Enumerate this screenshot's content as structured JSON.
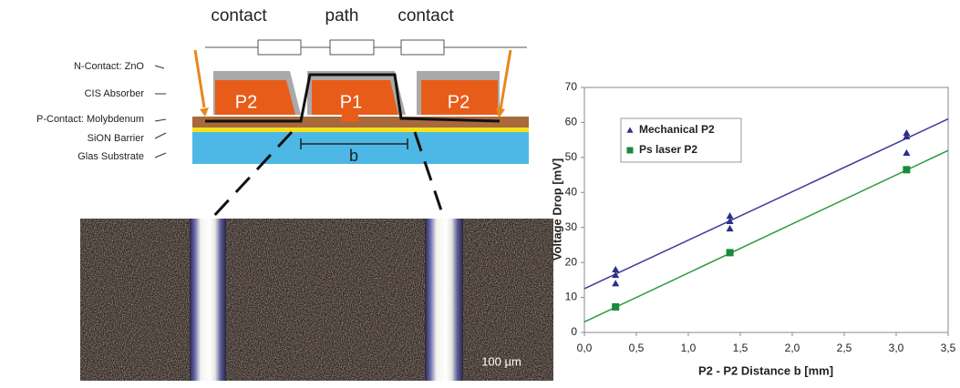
{
  "diagram": {
    "circuit_labels": [
      "contact",
      "path",
      "contact"
    ],
    "layer_labels": [
      "N-Contact: ZnO",
      "CIS Absorber",
      "P-Contact: Molybdenum",
      "SiON Barrier",
      "Glas Substrate"
    ],
    "cell_labels": [
      "P2",
      "P1",
      "P2"
    ],
    "distance_label": "b",
    "scale_bar": "100 µm"
  },
  "chart_data": {
    "type": "scatter",
    "x_label": "P2 - P2 Distance b [mm]",
    "y_label": "Voltage Drop [mV]",
    "xlim": [
      0,
      3.5
    ],
    "ylim": [
      0,
      70
    ],
    "xticks": [
      {
        "value": 0,
        "label": "0,0"
      },
      {
        "value": 0.5,
        "label": "0,5"
      },
      {
        "value": 1,
        "label": "1,0"
      },
      {
        "value": 1.5,
        "label": "1,5"
      },
      {
        "value": 2,
        "label": "2,0"
      },
      {
        "value": 2.5,
        "label": "2,5"
      },
      {
        "value": 3,
        "label": "3,0"
      },
      {
        "value": 3.5,
        "label": "3,5"
      }
    ],
    "yticks": [
      0,
      10,
      20,
      30,
      40,
      50,
      60,
      70
    ],
    "legend": "upper left",
    "series": [
      {
        "name": "Mechanical P2",
        "color": "#2b2f85",
        "marker": "triangle",
        "x": [
          0.3,
          0.3,
          0.3,
          1.4,
          1.4,
          1.4,
          3.1,
          3.1,
          3.1
        ],
        "values": [
          18,
          16.4,
          14,
          33.3,
          31.8,
          29.7,
          57,
          56,
          51.3
        ],
        "trendline": {
          "color": "#3a3a9a",
          "x": [
            0,
            3.5
          ],
          "y": [
            12.5,
            61
          ]
        }
      },
      {
        "name": "Ps laser P2",
        "color": "#1a8a3a",
        "marker": "square",
        "x": [
          0.3,
          1.4,
          3.1
        ],
        "values": [
          7.3,
          22.8,
          46.5
        ],
        "trendline": {
          "color": "#2e9a40",
          "x": [
            0,
            3.5
          ],
          "y": [
            3,
            52
          ]
        }
      }
    ]
  }
}
